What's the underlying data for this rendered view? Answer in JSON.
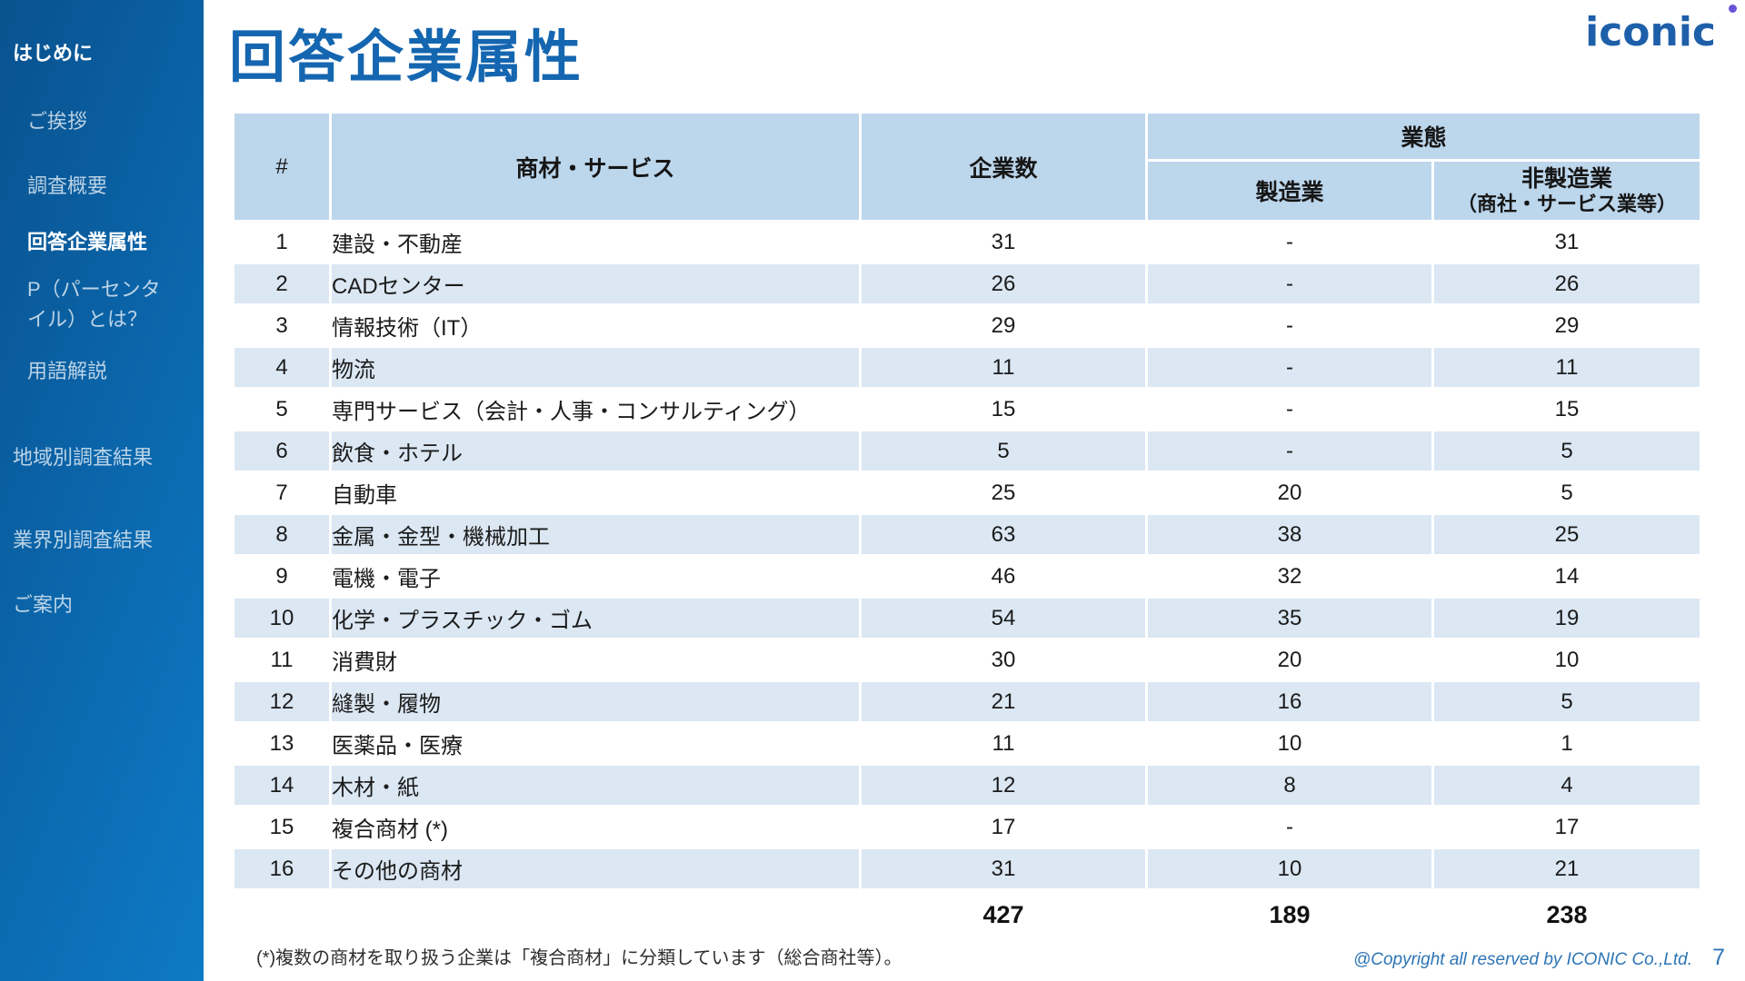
{
  "page": {
    "title": "回答企業属性",
    "page_number": "7"
  },
  "logo": {
    "text": "iconic",
    "dot_icon": "purple-dot"
  },
  "sidebar": {
    "items": [
      {
        "label": "はじめに",
        "level": "top",
        "emphasis": true
      },
      {
        "label": "ご挨拶",
        "level": "sub",
        "emphasis": false
      },
      {
        "label": "調査概要",
        "level": "sub",
        "emphasis": false
      },
      {
        "label": "回答企業属性",
        "level": "sub",
        "emphasis": true
      },
      {
        "label": "P（パーセンタ\nイル）とは？",
        "level": "sub",
        "emphasis": false
      },
      {
        "label": "用語解説",
        "level": "sub",
        "emphasis": false
      },
      {
        "label": "地域別調査結果",
        "level": "top",
        "emphasis": false
      },
      {
        "label": "業界別調査結果",
        "level": "top",
        "emphasis": false
      },
      {
        "label": "ご案内",
        "level": "top",
        "emphasis": false
      }
    ]
  },
  "table": {
    "headers": {
      "hash": "#",
      "product": "商材・サービス",
      "companies": "企業数",
      "group": "業態",
      "mfg": "製造業",
      "nonmfg_line1": "非製造業",
      "nonmfg_line2": "（商社・サービス業等）"
    },
    "rows": [
      {
        "num": "1",
        "label": "建設・不動産",
        "companies": "31",
        "mfg": "-",
        "nonmfg": "31"
      },
      {
        "num": "2",
        "label": "CADセンター",
        "companies": "26",
        "mfg": "-",
        "nonmfg": "26"
      },
      {
        "num": "3",
        "label": "情報技術（IT）",
        "companies": "29",
        "mfg": "-",
        "nonmfg": "29"
      },
      {
        "num": "4",
        "label": "物流",
        "companies": "11",
        "mfg": "-",
        "nonmfg": "11"
      },
      {
        "num": "5",
        "label": "専門サービス（会計・人事・コンサルティング）",
        "companies": "15",
        "mfg": "-",
        "nonmfg": "15"
      },
      {
        "num": "6",
        "label": "飲食・ホテル",
        "companies": "5",
        "mfg": "-",
        "nonmfg": "5"
      },
      {
        "num": "7",
        "label": "自動車",
        "companies": "25",
        "mfg": "20",
        "nonmfg": "5"
      },
      {
        "num": "8",
        "label": "金属・金型・機械加工",
        "companies": "63",
        "mfg": "38",
        "nonmfg": "25"
      },
      {
        "num": "9",
        "label": "電機・電子",
        "companies": "46",
        "mfg": "32",
        "nonmfg": "14"
      },
      {
        "num": "10",
        "label": "化学・プラスチック・ゴム",
        "companies": "54",
        "mfg": "35",
        "nonmfg": "19"
      },
      {
        "num": "11",
        "label": "消費財",
        "companies": "30",
        "mfg": "20",
        "nonmfg": "10"
      },
      {
        "num": "12",
        "label": "縫製・履物",
        "companies": "21",
        "mfg": "16",
        "nonmfg": "5"
      },
      {
        "num": "13",
        "label": "医薬品・医療",
        "companies": "11",
        "mfg": "10",
        "nonmfg": "1"
      },
      {
        "num": "14",
        "label": "木材・紙",
        "companies": "12",
        "mfg": "8",
        "nonmfg": "4"
      },
      {
        "num": "15",
        "label": "複合商材 (*)",
        "companies": "17",
        "mfg": "-",
        "nonmfg": "17"
      },
      {
        "num": "16",
        "label": "その他の商材",
        "companies": "31",
        "mfg": "10",
        "nonmfg": "21"
      }
    ],
    "totals": {
      "companies": "427",
      "mfg": "189",
      "nonmfg": "238"
    }
  },
  "footer": {
    "footnote": "(*)複数の商材を取り扱う企業は「複合商材」に分類しています（総合商社等）。",
    "copyright": "@Copyright all reserved by ICONIC Co.,Ltd."
  },
  "colors": {
    "accent": "#1566b0",
    "logo_blue": "#1e5fa9",
    "dot_purple": "#6a52d8",
    "sidebar_dark": "#09528f",
    "sidebar_light": "#0d7ac5",
    "header_cell_bg": "#bcd6ec",
    "stripe_bg": "#dbe7f3",
    "copyright_blue": "#2e75b6"
  }
}
